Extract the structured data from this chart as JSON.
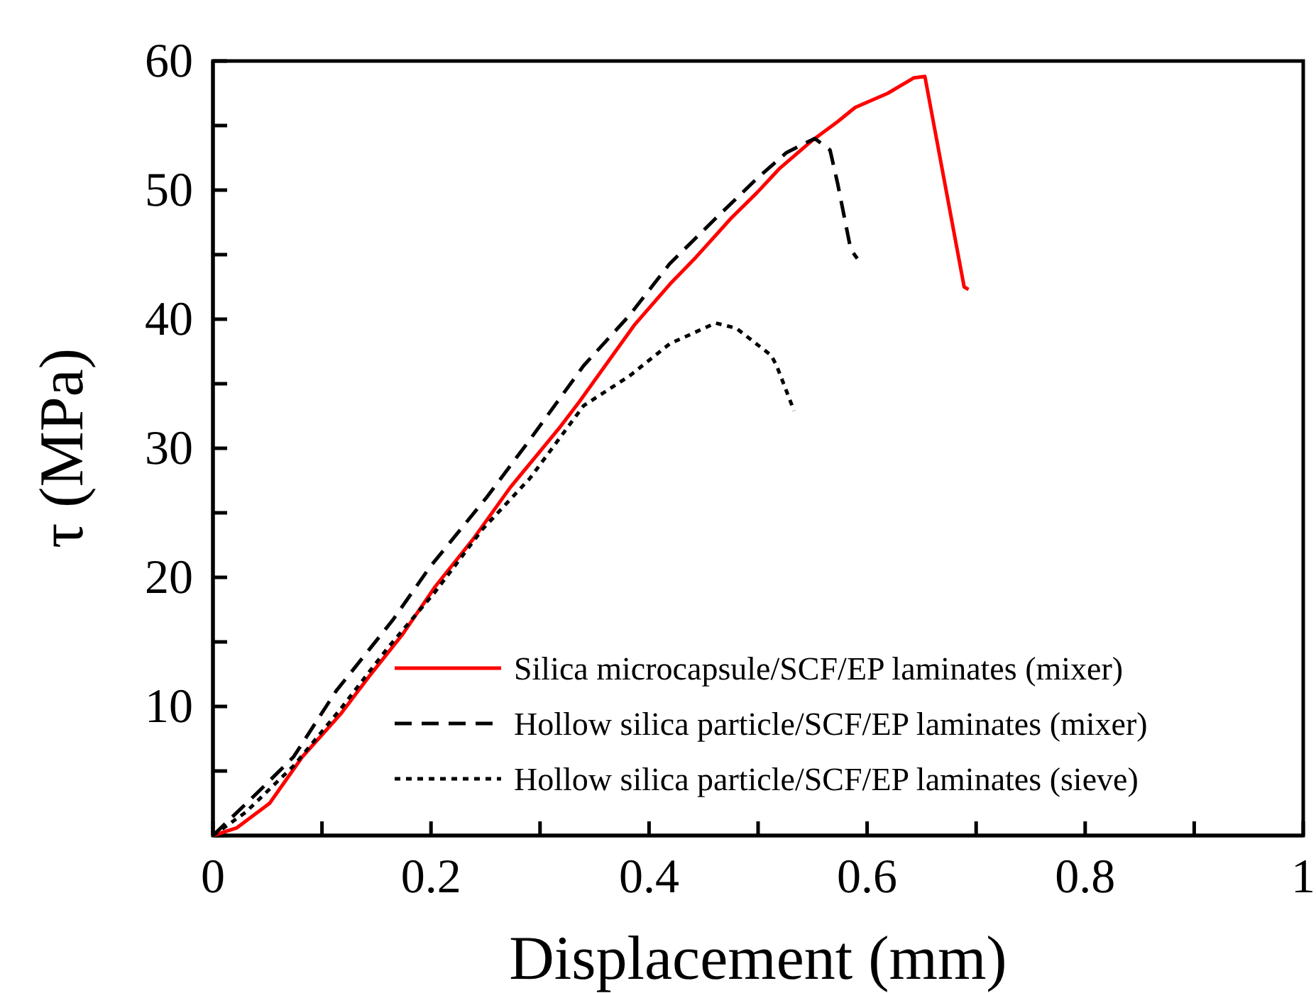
{
  "chart_data": {
    "type": "line",
    "xlabel": "Displacement (mm)",
    "ylabel": "τ (MPa)",
    "xlim": [
      0,
      1
    ],
    "xticks": [
      0,
      {
        "value": 0.1,
        "label": null
      },
      0.2,
      {
        "value": 0.3,
        "label": null
      },
      0.4,
      {
        "value": 0.5,
        "label": null
      },
      0.6,
      {
        "value": 0.7,
        "label": null
      },
      0.8,
      {
        "value": 0.9,
        "label": null
      },
      1
    ],
    "ylim": [
      0,
      60
    ],
    "yticks": [
      {
        "value": 0,
        "label": null
      },
      {
        "value": 5,
        "label": null
      },
      10,
      {
        "value": 15,
        "label": null
      },
      20,
      {
        "value": 25,
        "label": null
      },
      30,
      {
        "value": 35,
        "label": null
      },
      40,
      {
        "value": 45,
        "label": null
      },
      50,
      {
        "value": 55,
        "label": null
      },
      60
    ],
    "grid": false,
    "legend": "bottom right",
    "marker": "none",
    "series": [
      {
        "name": "Silica microcapsule/SCF/EP laminates (mixer)",
        "color": "#ff0000",
        "line_style": "solid",
        "x": [
          0,
          0.022,
          0.052,
          0.082,
          0.117,
          0.143,
          0.174,
          0.204,
          0.239,
          0.273,
          0.317,
          0.336,
          0.387,
          0.419,
          0.443,
          0.475,
          0.499,
          0.52,
          0.549,
          0.573,
          0.589,
          0.619,
          0.643,
          0.653,
          0.689,
          0.693
        ],
        "values": [
          0,
          0.6,
          2.5,
          6.1,
          9.4,
          12.3,
          15.6,
          19.3,
          23,
          27,
          31.5,
          33.6,
          39.6,
          42.7,
          44.8,
          47.8,
          49.8,
          51.7,
          53.8,
          55.3,
          56.4,
          57.5,
          58.7,
          58.8,
          42.5,
          42.3
        ]
      },
      {
        "name": "Hollow silica particle/SCF/EP laminates (mixer)",
        "color": "#000000",
        "line_style": "dashed",
        "x": [
          0,
          0.043,
          0.074,
          0.113,
          0.165,
          0.199,
          0.252,
          0.291,
          0.303,
          0.34,
          0.382,
          0.419,
          0.461,
          0.499,
          0.526,
          0.552,
          0.566,
          0.573,
          0.585,
          0.591
        ],
        "values": [
          0,
          3.5,
          6.1,
          11.2,
          16.7,
          20.8,
          26.3,
          30.7,
          32.1,
          36.4,
          40.3,
          44.3,
          47.8,
          50.9,
          52.9,
          54,
          53.1,
          50.5,
          45.4,
          44.7
        ]
      },
      {
        "name": "Hollow silica particle/SCF/EP laminates (sieve)",
        "color": "#000000",
        "line_style": "dotted",
        "x": [
          0,
          0.03,
          0.074,
          0.117,
          0.16,
          0.204,
          0.247,
          0.291,
          0.34,
          0.382,
          0.419,
          0.461,
          0.48,
          0.512,
          0.517,
          0.533
        ],
        "values": [
          0,
          1.8,
          5.4,
          9.8,
          14.5,
          18.9,
          23.7,
          27.7,
          33.3,
          35.6,
          38.1,
          39.7,
          39.3,
          37.2,
          36.4,
          32.9
        ]
      }
    ]
  }
}
